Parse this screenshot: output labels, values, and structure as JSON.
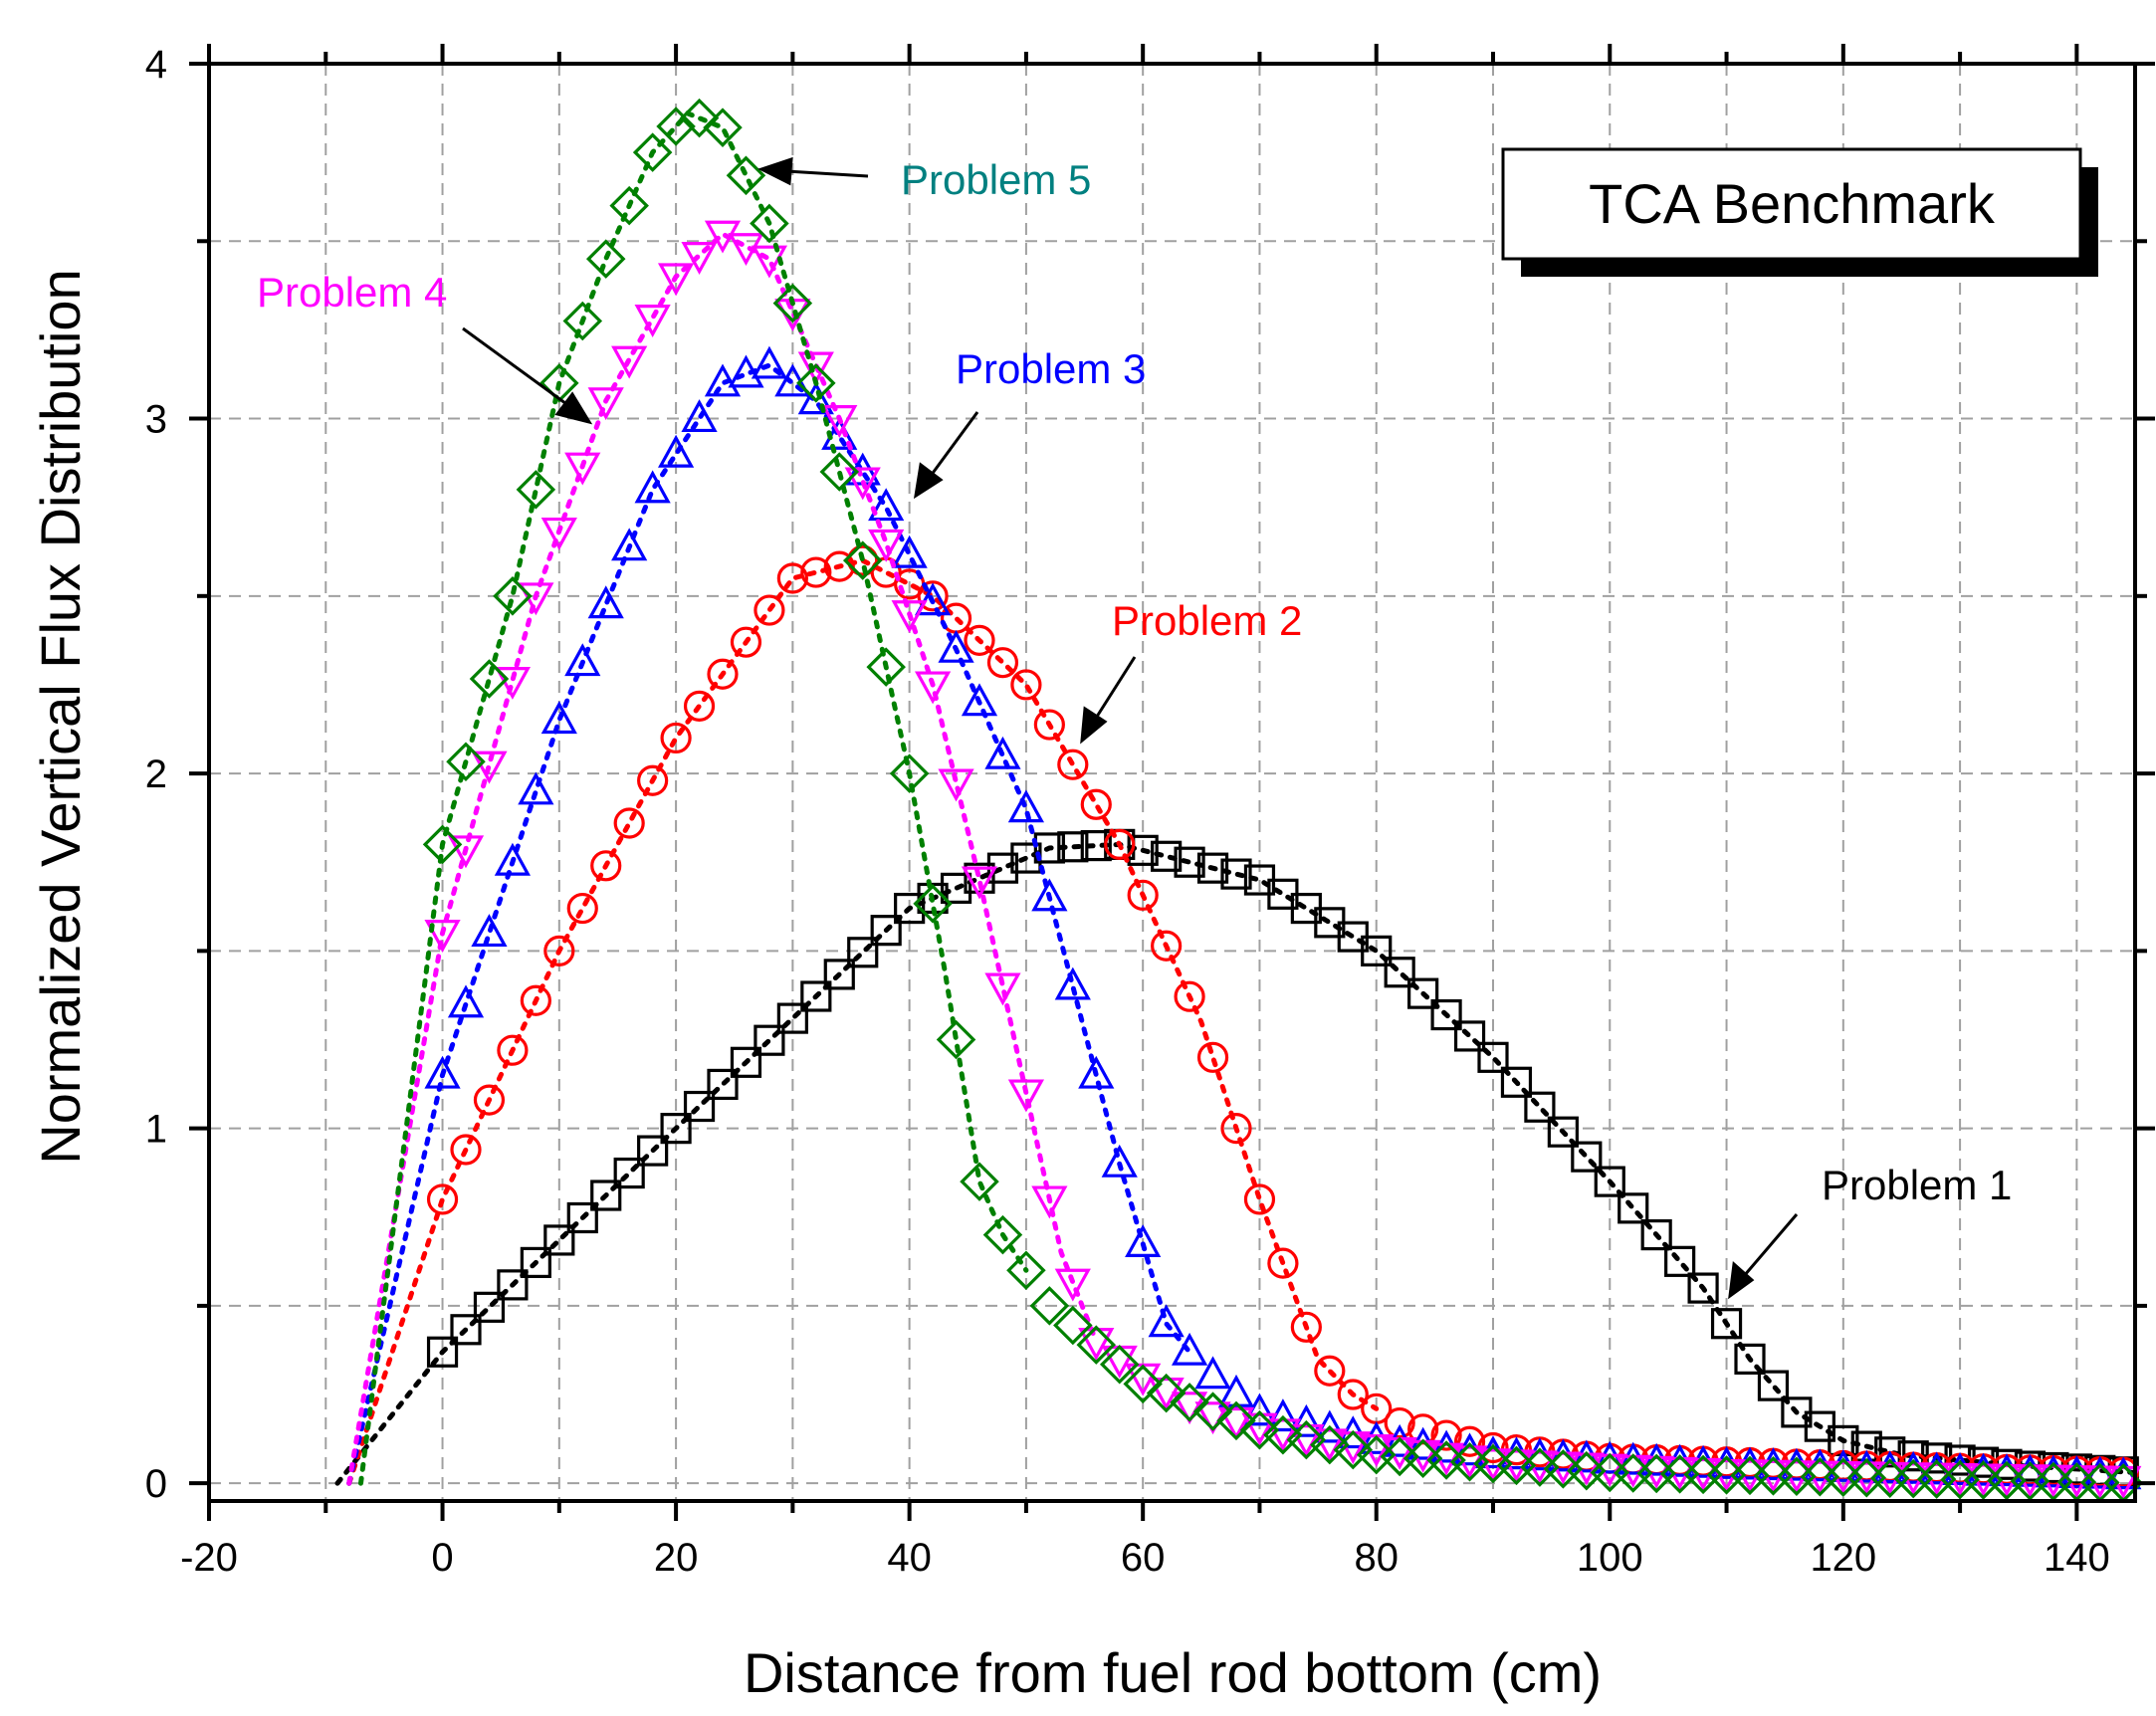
{
  "chart_data": {
    "type": "scatter",
    "title": "TCA Benchmark",
    "xlabel": "Distance from fuel rod bottom (cm)",
    "ylabel": "Normalized Vertical Flux Distribution",
    "xlim": [
      -20,
      145
    ],
    "ylim": [
      -0.05,
      4
    ],
    "xticks": [
      -20,
      0,
      20,
      40,
      60,
      80,
      100,
      120,
      140
    ],
    "yticks": [
      0,
      1,
      2,
      3,
      4
    ],
    "grid": true,
    "series": [
      {
        "name": "Problem 1",
        "marker": "square",
        "color": "#000000",
        "x_range": [
          0,
          145
        ],
        "marker_step": 2,
        "fit_start": -9,
        "fit_end": 145,
        "curve": [
          [
            -9,
            0.0
          ],
          [
            0,
            0.37
          ],
          [
            20,
            1.0
          ],
          [
            40,
            1.62
          ],
          [
            52,
            1.79
          ],
          [
            58,
            1.8
          ],
          [
            70,
            1.7
          ],
          [
            80,
            1.5
          ],
          [
            90,
            1.2
          ],
          [
            100,
            0.85
          ],
          [
            108,
            0.55
          ],
          [
            112,
            0.35
          ],
          [
            116,
            0.2
          ],
          [
            120,
            0.12
          ],
          [
            125,
            0.08
          ],
          [
            135,
            0.05
          ],
          [
            145,
            0.03
          ]
        ]
      },
      {
        "name": "Problem 2",
        "marker": "circle",
        "color": "#ff0000",
        "x_range": [
          0,
          145
        ],
        "marker_step": 2,
        "fit_start": -8,
        "fit_end": 80,
        "curve": [
          [
            -8,
            0.0
          ],
          [
            0,
            0.8
          ],
          [
            10,
            1.5
          ],
          [
            20,
            2.1
          ],
          [
            30,
            2.55
          ],
          [
            36,
            2.6
          ],
          [
            42,
            2.5
          ],
          [
            50,
            2.25
          ],
          [
            58,
            1.8
          ],
          [
            65,
            1.3
          ],
          [
            70,
            0.8
          ],
          [
            75,
            0.35
          ],
          [
            78,
            0.25
          ],
          [
            82,
            0.17
          ],
          [
            90,
            0.1
          ],
          [
            100,
            0.07
          ],
          [
            120,
            0.05
          ],
          [
            145,
            0.03
          ]
        ]
      },
      {
        "name": "Problem 3",
        "marker": "triangle-up",
        "color": "#0000ff",
        "x_range": [
          0,
          145
        ],
        "marker_step": 2,
        "fit_start": -8,
        "fit_end": 64,
        "curve": [
          [
            -8,
            0.0
          ],
          [
            0,
            1.15
          ],
          [
            10,
            2.15
          ],
          [
            18,
            2.8
          ],
          [
            24,
            3.1
          ],
          [
            28,
            3.15
          ],
          [
            32,
            3.05
          ],
          [
            38,
            2.75
          ],
          [
            44,
            2.35
          ],
          [
            50,
            1.9
          ],
          [
            54,
            1.4
          ],
          [
            58,
            0.9
          ],
          [
            62,
            0.45
          ],
          [
            65,
            0.33
          ],
          [
            70,
            0.2
          ],
          [
            80,
            0.12
          ],
          [
            90,
            0.08
          ],
          [
            110,
            0.05
          ],
          [
            145,
            0.02
          ]
        ]
      },
      {
        "name": "Problem 4",
        "marker": "triangle-down",
        "color": "#ff00ff",
        "x_range": [
          0,
          145
        ],
        "marker_step": 2,
        "fit_start": -8,
        "fit_end": 56,
        "curve": [
          [
            -8,
            0.0
          ],
          [
            0,
            1.55
          ],
          [
            8,
            2.5
          ],
          [
            14,
            3.05
          ],
          [
            20,
            3.4
          ],
          [
            24,
            3.52
          ],
          [
            28,
            3.45
          ],
          [
            34,
            3.0
          ],
          [
            38,
            2.65
          ],
          [
            42,
            2.25
          ],
          [
            46,
            1.7
          ],
          [
            50,
            1.1
          ],
          [
            53,
            0.65
          ],
          [
            56,
            0.4
          ],
          [
            60,
            0.3
          ],
          [
            65,
            0.2
          ],
          [
            75,
            0.12
          ],
          [
            90,
            0.06
          ],
          [
            110,
            0.03
          ],
          [
            145,
            0.01
          ]
        ]
      },
      {
        "name": "Problem 5",
        "marker": "diamond",
        "color": "#008000",
        "x_range": [
          0,
          145
        ],
        "marker_step": 2,
        "fit_start": -7,
        "fit_end": 50,
        "curve": [
          [
            -7,
            0.0
          ],
          [
            0,
            1.8
          ],
          [
            6,
            2.5
          ],
          [
            10,
            3.1
          ],
          [
            14,
            3.45
          ],
          [
            18,
            3.75
          ],
          [
            21,
            3.86
          ],
          [
            24,
            3.82
          ],
          [
            28,
            3.55
          ],
          [
            32,
            3.1
          ],
          [
            36,
            2.6
          ],
          [
            40,
            2.0
          ],
          [
            43,
            1.45
          ],
          [
            46,
            0.85
          ],
          [
            48,
            0.7
          ],
          [
            52,
            0.5
          ],
          [
            60,
            0.28
          ],
          [
            70,
            0.15
          ],
          [
            80,
            0.08
          ],
          [
            100,
            0.03
          ],
          [
            145,
            0.0
          ]
        ]
      }
    ],
    "annotations": [
      {
        "text": "Problem 1",
        "color": "#000000"
      },
      {
        "text": "Problem 2",
        "color": "#ff0000"
      },
      {
        "text": "Problem 3",
        "color": "#0000ff"
      },
      {
        "text": "Problem 4",
        "color": "#ff00ff"
      },
      {
        "text": "Problem 5",
        "color": "#008080"
      }
    ]
  }
}
